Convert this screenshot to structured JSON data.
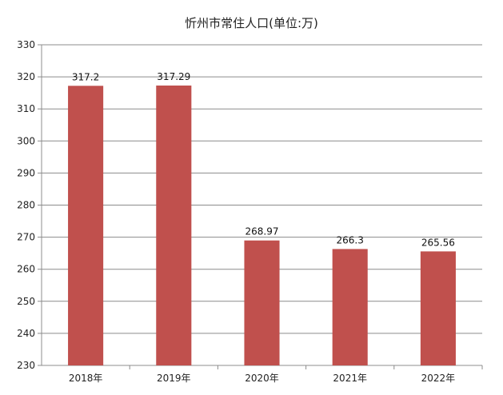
{
  "chart_data": {
    "type": "bar",
    "title": "忻州市常住人口(单位:万)",
    "categories": [
      "2018年",
      "2019年",
      "2020年",
      "2021年",
      "2022年"
    ],
    "series": [
      {
        "values": [
          317.2,
          317.29,
          268.97,
          266.3,
          265.56
        ],
        "labels": [
          "317.2",
          "317.29",
          "268.97",
          "266.3",
          "265.56"
        ]
      }
    ],
    "ylim": [
      230,
      330
    ],
    "yticks": [
      230,
      240,
      250,
      260,
      270,
      280,
      290,
      300,
      310,
      320,
      330
    ],
    "grid": true,
    "bar_color": "#c0504d",
    "legend": "none"
  }
}
